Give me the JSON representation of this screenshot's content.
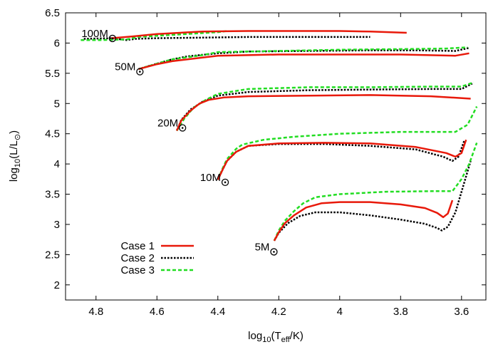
{
  "chart_data": {
    "type": "line",
    "xlabel": {
      "prefix": "log",
      "sub1": "10",
      "mid": "(T",
      "sub2": "eff",
      "suffix": "/K)"
    },
    "ylabel": {
      "prefix": "log",
      "sub1": "10",
      "mid": "(L/L",
      "sub2": "⊙",
      "suffix": ")"
    },
    "xlim": [
      4.9,
      3.52
    ],
    "ylim": [
      1.75,
      6.5
    ],
    "xticks": [
      "4.8",
      "4.6",
      "4.4",
      "4.2",
      "4",
      "3.8",
      "3.6"
    ],
    "xtick_values": [
      4.8,
      4.6,
      4.4,
      4.2,
      4.0,
      3.8,
      3.6
    ],
    "yticks": [
      "2",
      "2.5",
      "3",
      "3.5",
      "4",
      "4.5",
      "5",
      "5.5",
      "6",
      "6.5"
    ],
    "ytick_values": [
      2.0,
      2.5,
      3.0,
      3.5,
      4.0,
      4.5,
      5.0,
      5.5,
      6.0,
      6.5
    ],
    "grid": false,
    "legend_position": "bottom-left",
    "colors": {
      "case1": "#e8190a",
      "case2": "#000000",
      "case3": "#22dd22"
    },
    "mass_labels": [
      {
        "text": "100M",
        "x": 4.76,
        "y": 6.1
      },
      {
        "text": "50M",
        "x": 4.67,
        "y": 5.55
      },
      {
        "text": "20M",
        "x": 4.53,
        "y": 4.62
      },
      {
        "text": "10M",
        "x": 4.39,
        "y": 3.72
      },
      {
        "text": "5M",
        "x": 4.23,
        "y": 2.57
      }
    ],
    "series": [
      {
        "name": "Case 1",
        "style": "solid",
        "tracks": [
          [
            [
              4.75,
              6.08
            ],
            [
              4.68,
              6.11
            ],
            [
              4.6,
              6.15
            ],
            [
              4.45,
              6.19
            ],
            [
              4.3,
              6.2
            ],
            [
              4.1,
              6.2
            ],
            [
              4.0,
              6.2
            ],
            [
              3.9,
              6.19
            ],
            [
              3.78,
              6.17
            ]
          ],
          [
            [
              4.66,
              5.57
            ],
            [
              4.6,
              5.65
            ],
            [
              4.55,
              5.7
            ],
            [
              4.45,
              5.76
            ],
            [
              4.4,
              5.79
            ],
            [
              4.2,
              5.81
            ],
            [
              4.0,
              5.81
            ],
            [
              3.8,
              5.81
            ],
            [
              3.62,
              5.79
            ],
            [
              3.575,
              5.83
            ]
          ],
          [
            [
              4.535,
              4.55
            ],
            [
              4.52,
              4.72
            ],
            [
              4.49,
              4.88
            ],
            [
              4.46,
              5.0
            ],
            [
              4.43,
              5.06
            ],
            [
              4.38,
              5.1
            ],
            [
              4.3,
              5.12
            ],
            [
              4.1,
              5.13
            ],
            [
              3.9,
              5.14
            ],
            [
              3.7,
              5.12
            ],
            [
              3.57,
              5.08
            ]
          ],
          [
            [
              4.4,
              3.74
            ],
            [
              4.385,
              3.9
            ],
            [
              4.37,
              4.05
            ],
            [
              4.34,
              4.2
            ],
            [
              4.3,
              4.3
            ],
            [
              4.2,
              4.34
            ],
            [
              4.05,
              4.35
            ],
            [
              3.9,
              4.34
            ],
            [
              3.75,
              4.28
            ],
            [
              3.65,
              4.18
            ],
            [
              3.62,
              4.12
            ],
            [
              3.6,
              4.18
            ],
            [
              3.585,
              4.4
            ]
          ],
          [
            [
              4.215,
              2.73
            ],
            [
              4.2,
              2.87
            ],
            [
              4.18,
              3.02
            ],
            [
              4.15,
              3.15
            ],
            [
              4.11,
              3.28
            ],
            [
              4.06,
              3.35
            ],
            [
              4.0,
              3.37
            ],
            [
              3.9,
              3.37
            ],
            [
              3.8,
              3.33
            ],
            [
              3.72,
              3.27
            ],
            [
              3.68,
              3.19
            ],
            [
              3.66,
              3.12
            ],
            [
              3.645,
              3.18
            ],
            [
              3.63,
              3.4
            ]
          ]
        ]
      },
      {
        "name": "Case 2",
        "style": "dotted",
        "tracks": [
          [
            [
              4.84,
              6.07
            ],
            [
              4.75,
              6.08
            ],
            [
              4.7,
              6.05
            ],
            [
              4.67,
              6.07
            ],
            [
              4.6,
              6.08
            ],
            [
              4.45,
              6.09
            ],
            [
              4.3,
              6.1
            ],
            [
              4.1,
              6.1
            ],
            [
              3.9,
              6.1
            ]
          ],
          [
            [
              4.66,
              5.57
            ],
            [
              4.6,
              5.66
            ],
            [
              4.55,
              5.73
            ],
            [
              4.5,
              5.78
            ],
            [
              4.4,
              5.83
            ],
            [
              4.3,
              5.86
            ],
            [
              4.1,
              5.87
            ],
            [
              3.9,
              5.88
            ],
            [
              3.75,
              5.88
            ],
            [
              3.62,
              5.87
            ],
            [
              3.575,
              5.92
            ]
          ],
          [
            [
              4.535,
              4.55
            ],
            [
              4.52,
              4.73
            ],
            [
              4.49,
              4.9
            ],
            [
              4.45,
              5.03
            ],
            [
              4.4,
              5.13
            ],
            [
              4.3,
              5.19
            ],
            [
              4.1,
              5.22
            ],
            [
              3.9,
              5.23
            ],
            [
              3.7,
              5.24
            ],
            [
              3.6,
              5.24
            ],
            [
              3.565,
              5.33
            ]
          ],
          [
            [
              4.4,
              3.74
            ],
            [
              4.385,
              3.9
            ],
            [
              4.37,
              4.05
            ],
            [
              4.34,
              4.2
            ],
            [
              4.3,
              4.3
            ],
            [
              4.2,
              4.33
            ],
            [
              4.05,
              4.33
            ],
            [
              3.9,
              4.3
            ],
            [
              3.75,
              4.24
            ],
            [
              3.66,
              4.12
            ],
            [
              3.63,
              4.05
            ],
            [
              3.61,
              4.12
            ],
            [
              3.59,
              4.4
            ]
          ],
          [
            [
              4.215,
              2.73
            ],
            [
              4.2,
              2.86
            ],
            [
              4.17,
              3.02
            ],
            [
              4.13,
              3.14
            ],
            [
              4.08,
              3.2
            ],
            [
              4.0,
              3.2
            ],
            [
              3.9,
              3.15
            ],
            [
              3.8,
              3.08
            ],
            [
              3.72,
              3.01
            ],
            [
              3.68,
              2.94
            ],
            [
              3.665,
              2.9
            ],
            [
              3.645,
              2.96
            ],
            [
              3.62,
              3.2
            ],
            [
              3.57,
              4.05
            ]
          ]
        ]
      },
      {
        "name": "Case 3",
        "style": "dashed",
        "tracks": [
          [
            [
              4.85,
              6.05
            ],
            [
              4.78,
              6.05
            ],
            [
              4.7,
              6.06
            ],
            [
              4.66,
              6.1
            ],
            [
              4.6,
              6.12
            ],
            [
              4.5,
              6.15
            ],
            [
              4.4,
              6.18
            ],
            [
              4.37,
              6.2
            ]
          ],
          [
            [
              4.66,
              5.57
            ],
            [
              4.6,
              5.66
            ],
            [
              4.55,
              5.73
            ],
            [
              4.45,
              5.8
            ],
            [
              4.4,
              5.85
            ],
            [
              4.2,
              5.87
            ],
            [
              4.0,
              5.89
            ],
            [
              3.8,
              5.9
            ],
            [
              3.65,
              5.91
            ],
            [
              3.58,
              5.93
            ]
          ],
          [
            [
              4.535,
              4.55
            ],
            [
              4.51,
              4.75
            ],
            [
              4.48,
              4.93
            ],
            [
              4.44,
              5.06
            ],
            [
              4.4,
              5.16
            ],
            [
              4.3,
              5.24
            ],
            [
              4.1,
              5.27
            ],
            [
              3.9,
              5.27
            ],
            [
              3.7,
              5.28
            ],
            [
              3.6,
              5.28
            ],
            [
              3.56,
              5.35
            ]
          ],
          [
            [
              4.4,
              3.74
            ],
            [
              4.385,
              3.92
            ],
            [
              4.37,
              4.08
            ],
            [
              4.34,
              4.25
            ],
            [
              4.32,
              4.32
            ],
            [
              4.25,
              4.4
            ],
            [
              4.15,
              4.45
            ],
            [
              4.0,
              4.5
            ],
            [
              3.8,
              4.53
            ],
            [
              3.62,
              4.53
            ],
            [
              3.58,
              4.65
            ],
            [
              3.55,
              4.95
            ]
          ],
          [
            [
              4.215,
              2.73
            ],
            [
              4.2,
              2.9
            ],
            [
              4.18,
              3.06
            ],
            [
              4.15,
              3.22
            ],
            [
              4.12,
              3.35
            ],
            [
              4.08,
              3.45
            ],
            [
              4.0,
              3.5
            ],
            [
              3.85,
              3.54
            ],
            [
              3.7,
              3.55
            ],
            [
              3.63,
              3.55
            ],
            [
              3.6,
              3.75
            ],
            [
              3.575,
              4.0
            ],
            [
              3.55,
              4.35
            ]
          ]
        ]
      }
    ]
  }
}
